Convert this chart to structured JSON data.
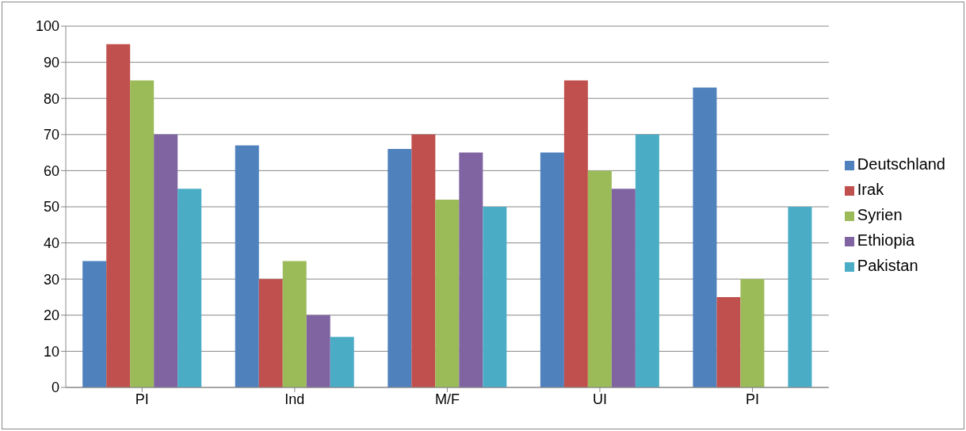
{
  "chart_data": {
    "type": "bar",
    "categories": [
      "PI",
      "Ind",
      "M/F",
      "UI",
      "PI"
    ],
    "series": [
      {
        "name": "Deutschland",
        "color": "#4f81bd",
        "values": [
          35,
          67,
          66,
          65,
          83
        ]
      },
      {
        "name": "Irak",
        "color": "#c0504d",
        "values": [
          95,
          30,
          70,
          85,
          25
        ]
      },
      {
        "name": "Syrien",
        "color": "#9bbb59",
        "values": [
          85,
          35,
          52,
          60,
          30
        ]
      },
      {
        "name": "Ethiopia",
        "color": "#8064a2",
        "values": [
          70,
          20,
          65,
          55,
          null
        ]
      },
      {
        "name": "Pakistan",
        "color": "#4bacc6",
        "values": [
          55,
          14,
          50,
          70,
          50
        ]
      }
    ],
    "ylim": [
      0,
      100
    ],
    "yticks": [
      0,
      10,
      20,
      30,
      40,
      50,
      60,
      70,
      80,
      90,
      100
    ],
    "grid": "y",
    "legend": "right"
  }
}
